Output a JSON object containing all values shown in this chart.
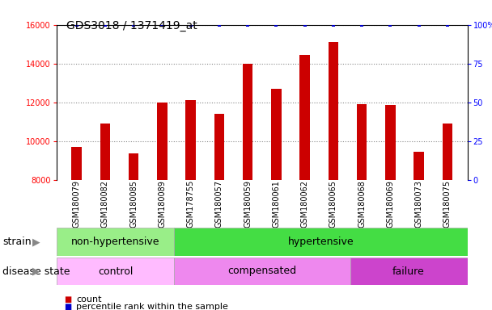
{
  "title": "GDS3018 / 1371419_at",
  "samples": [
    "GSM180079",
    "GSM180082",
    "GSM180085",
    "GSM180089",
    "GSM178755",
    "GSM180057",
    "GSM180059",
    "GSM180061",
    "GSM180062",
    "GSM180065",
    "GSM180068",
    "GSM180069",
    "GSM180073",
    "GSM180075"
  ],
  "counts": [
    9700,
    10900,
    9350,
    12000,
    12100,
    11400,
    14000,
    12700,
    14450,
    15100,
    11900,
    11850,
    9450,
    10900
  ],
  "percentile_ranks": [
    100,
    100,
    100,
    100,
    100,
    100,
    100,
    100,
    100,
    100,
    100,
    100,
    100,
    100
  ],
  "ylim_left": [
    8000,
    16000
  ],
  "ylim_right": [
    0,
    100
  ],
  "yticks_left": [
    8000,
    10000,
    12000,
    14000,
    16000
  ],
  "yticks_right": [
    0,
    25,
    50,
    75,
    100
  ],
  "bar_color": "#cc0000",
  "percentile_color": "#0000cc",
  "strain_groups": [
    {
      "label": "non-hypertensive",
      "start": 0,
      "end": 4,
      "color": "#99ee88"
    },
    {
      "label": "hypertensive",
      "start": 4,
      "end": 14,
      "color": "#44dd44"
    }
  ],
  "disease_groups": [
    {
      "label": "control",
      "start": 0,
      "end": 4,
      "color": "#ffbbff"
    },
    {
      "label": "compensated",
      "start": 4,
      "end": 10,
      "color": "#ee88ee"
    },
    {
      "label": "failure",
      "start": 10,
      "end": 14,
      "color": "#cc44cc"
    }
  ],
  "strain_label": "strain",
  "disease_label": "disease state",
  "legend_count_label": "count",
  "legend_percentile_label": "percentile rank within the sample",
  "background_color": "#ffffff",
  "tick_area_color": "#cccccc",
  "grid_color": "#888888",
  "spine_color": "#000000",
  "title_fontsize": 10,
  "tick_fontsize": 7,
  "annotation_fontsize": 9,
  "bar_width": 0.35
}
